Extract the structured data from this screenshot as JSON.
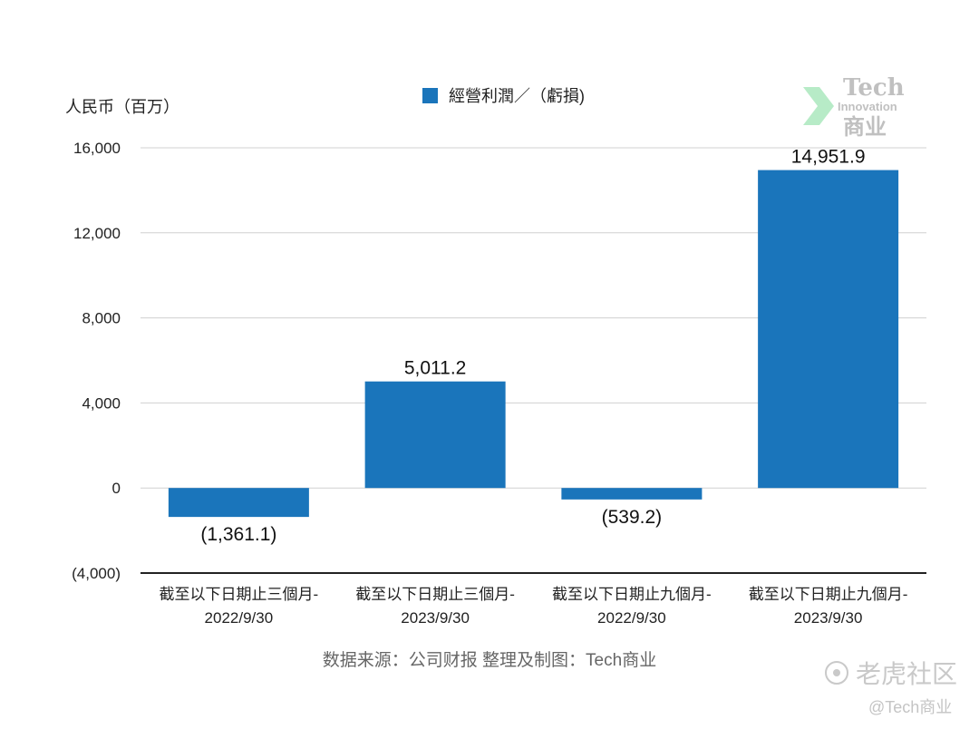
{
  "chart_data": {
    "type": "bar",
    "categories": [
      [
        "截至以下日期止三個月-",
        "2022/9/30"
      ],
      [
        "截至以下日期止三個月-",
        "2023/9/30"
      ],
      [
        "截至以下日期止九個月-",
        "2022/9/30"
      ],
      [
        "截至以下日期止九個月-",
        "2023/9/30"
      ]
    ],
    "series": [
      {
        "name": "經營利潤／（虧損)",
        "values": [
          -1361.1,
          5011.2,
          -539.2,
          14951.9
        ]
      }
    ],
    "data_labels": [
      "(1,361.1)",
      "5,011.2",
      "(539.2)",
      "14,951.9"
    ],
    "ylabel": "人民币（百万）",
    "ylim": [
      -4000,
      16000
    ],
    "yticks": [
      -4000,
      0,
      4000,
      8000,
      12000,
      16000
    ],
    "ytick_labels": [
      "(4,000)",
      "0",
      "4,000",
      "8,000",
      "12,000",
      "16,000"
    ],
    "grid": true,
    "legend_position": "top",
    "bar_color": "#1a75bb"
  },
  "source": "数据来源：公司财报 整理及制图：Tech商业",
  "logo": {
    "line1": "Tech",
    "line2": "Innovation",
    "line3": "商业"
  },
  "watermark": {
    "main": "老虎社区",
    "sub": "@Tech商业"
  }
}
